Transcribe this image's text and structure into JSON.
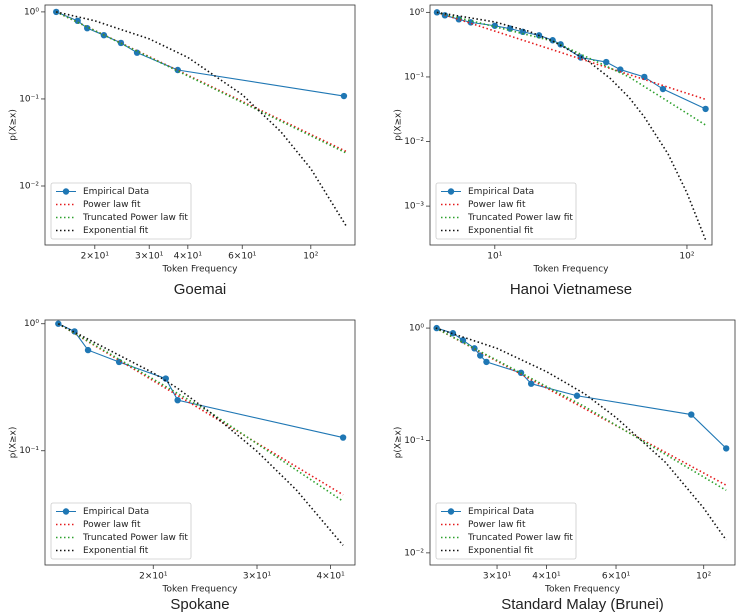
{
  "chart_data": [
    {
      "type": "line",
      "title": "Goemai",
      "xlabel": "Token Frequency",
      "ylabel": "p(X≥x)",
      "xscale": "log",
      "yscale": "log",
      "legend": "lower left",
      "xlim": [
        13.8,
        139
      ],
      "ylim": [
        0.0021,
        1.2
      ],
      "xticks": [
        {
          "value": 20,
          "label": "2×10¹"
        },
        {
          "value": 30,
          "label": "3×10¹"
        },
        {
          "value": 40,
          "label": "4×10¹"
        },
        {
          "value": 60,
          "label": "6×10¹"
        },
        {
          "value": 100,
          "label": "10²"
        }
      ],
      "yticks": [
        {
          "value": 1,
          "label": "10⁰"
        },
        {
          "value": 0.1,
          "label": "10⁻¹"
        },
        {
          "value": 0.01,
          "label": "10⁻²"
        }
      ],
      "series": [
        {
          "name": "Empirical Data",
          "color": "#1f77b4",
          "linestyle": "solid",
          "marker": "o",
          "x": [
            15,
            17.6,
            18.9,
            21.4,
            24.3,
            27.4,
            37.1,
            128
          ],
          "values": [
            1.0,
            0.79,
            0.65,
            0.54,
            0.44,
            0.34,
            0.215,
            0.108
          ]
        },
        {
          "name": "Power law fit",
          "color": "#e41a1c",
          "linestyle": "dotted",
          "marker": "none",
          "x": [
            15,
            130
          ],
          "values": [
            1.0,
            0.025
          ]
        },
        {
          "name": "Truncated Power law fit",
          "color": "#2ca02c",
          "linestyle": "dotted",
          "marker": "none",
          "x": [
            15,
            130
          ],
          "values": [
            1.0,
            0.024
          ]
        },
        {
          "name": "Exponential fit",
          "color": "#111111",
          "linestyle": "dotted",
          "marker": "none",
          "x": [
            15,
            20,
            30,
            40,
            60,
            80,
            100,
            130
          ],
          "values": [
            1.0,
            0.79,
            0.49,
            0.3,
            0.112,
            0.042,
            0.0158,
            0.0035
          ]
        }
      ]
    },
    {
      "type": "line",
      "title": "Hanoi Vietnamese",
      "xlabel": "Token Frequency",
      "ylabel": "p(X≥x)",
      "xscale": "log",
      "yscale": "log",
      "legend": "lower left",
      "xlim": [
        4.6,
        135
      ],
      "ylim": [
        0.00025,
        1.3
      ],
      "xticks": [
        {
          "value": 10,
          "label": "10¹"
        },
        {
          "value": 100,
          "label": "10²"
        }
      ],
      "yticks": [
        {
          "value": 1,
          "label": "10⁰"
        },
        {
          "value": 0.1,
          "label": "10⁻¹"
        },
        {
          "value": 0.01,
          "label": "10⁻²"
        },
        {
          "value": 0.001,
          "label": "10⁻³"
        }
      ],
      "series": [
        {
          "name": "Empirical Data",
          "color": "#1f77b4",
          "linestyle": "solid",
          "marker": "o",
          "x": [
            5,
            5.5,
            6.5,
            7.5,
            10,
            12,
            14,
            17,
            20,
            22,
            28,
            38,
            45,
            60,
            75,
            125
          ],
          "values": [
            1.0,
            0.9,
            0.78,
            0.7,
            0.62,
            0.56,
            0.5,
            0.44,
            0.37,
            0.32,
            0.2,
            0.17,
            0.13,
            0.1,
            0.065,
            0.032
          ]
        },
        {
          "name": "Power law fit",
          "color": "#e41a1c",
          "linestyle": "dotted",
          "marker": "none",
          "x": [
            5,
            125
          ],
          "values": [
            1.0,
            0.045
          ]
        },
        {
          "name": "Truncated Power law fit",
          "color": "#2ca02c",
          "linestyle": "dotted",
          "marker": "none",
          "x": [
            5,
            20,
            50,
            125
          ],
          "values": [
            1.0,
            0.36,
            0.1,
            0.018
          ]
        },
        {
          "name": "Exponential fit",
          "color": "#111111",
          "linestyle": "dotted",
          "marker": "none",
          "x": [
            5,
            10,
            15,
            20,
            30,
            40,
            50,
            60,
            80,
            100,
            125
          ],
          "values": [
            1.0,
            0.71,
            0.51,
            0.36,
            0.185,
            0.094,
            0.048,
            0.024,
            0.0063,
            0.0016,
            0.0003
          ]
        }
      ]
    },
    {
      "type": "line",
      "title": "Spokane",
      "xlabel": "Token Frequency",
      "ylabel": "p(X≥x)",
      "xscale": "log",
      "yscale": "log",
      "legend": "lower left",
      "xlim": [
        13.1,
        44
      ],
      "ylim": [
        0.0126,
        1.07
      ],
      "xticks": [
        {
          "value": 20,
          "label": "2×10¹"
        },
        {
          "value": 30,
          "label": "3×10¹"
        },
        {
          "value": 40,
          "label": "4×10¹"
        }
      ],
      "yticks": [
        {
          "value": 1,
          "label": "10⁰"
        },
        {
          "value": 0.1,
          "label": "10⁻¹"
        }
      ],
      "series": [
        {
          "name": "Empirical Data",
          "color": "#1f77b4",
          "linestyle": "solid",
          "marker": "o",
          "x": [
            13.8,
            14.7,
            15.5,
            17.5,
            21,
            22,
            42
          ],
          "values": [
            1.0,
            0.87,
            0.62,
            0.5,
            0.37,
            0.25,
            0.127
          ]
        },
        {
          "name": "Power law fit",
          "color": "#e41a1c",
          "linestyle": "dotted",
          "marker": "none",
          "x": [
            13.8,
            42
          ],
          "values": [
            1.0,
            0.045
          ]
        },
        {
          "name": "Truncated Power law fit",
          "color": "#2ca02c",
          "linestyle": "dotted",
          "marker": "none",
          "x": [
            13.8,
            25,
            42
          ],
          "values": [
            1.0,
            0.2,
            0.04
          ]
        },
        {
          "name": "Exponential fit",
          "color": "#111111",
          "linestyle": "dotted",
          "marker": "none",
          "x": [
            13.8,
            20,
            22,
            25,
            30,
            35,
            42
          ],
          "values": [
            1.0,
            0.41,
            0.31,
            0.2,
            0.099,
            0.049,
            0.018
          ]
        }
      ]
    },
    {
      "type": "line",
      "title": "Standard Malay (Brunei)",
      "xlabel": "Token Frequency",
      "ylabel": "p(X≥x)",
      "xscale": "log",
      "yscale": "log",
      "legend": "lower left",
      "xlim": [
        20.3,
        120
      ],
      "ylim": [
        0.0078,
        1.18
      ],
      "xticks": [
        {
          "value": 30,
          "label": "3×10¹"
        },
        {
          "value": 40,
          "label": "4×10¹"
        },
        {
          "value": 60,
          "label": "6×10¹"
        },
        {
          "value": 100,
          "label": "10²"
        }
      ],
      "yticks": [
        {
          "value": 1,
          "label": "10⁰"
        },
        {
          "value": 0.1,
          "label": "10⁻¹"
        },
        {
          "value": 0.01,
          "label": "10⁻²"
        }
      ],
      "series": [
        {
          "name": "Empirical Data",
          "color": "#1f77b4",
          "linestyle": "solid",
          "marker": "o",
          "x": [
            21.1,
            23.2,
            24.6,
            26.3,
            27.2,
            28.2,
            34.5,
            36.6,
            47.8,
            93,
            114
          ],
          "values": [
            1.0,
            0.9,
            0.78,
            0.66,
            0.57,
            0.5,
            0.4,
            0.32,
            0.25,
            0.17,
            0.085
          ]
        },
        {
          "name": "Power law fit",
          "color": "#e41a1c",
          "linestyle": "dotted",
          "marker": "none",
          "x": [
            21,
            114
          ],
          "values": [
            1.0,
            0.04
          ]
        },
        {
          "name": "Truncated Power law fit",
          "color": "#2ca02c",
          "linestyle": "dotted",
          "marker": "none",
          "x": [
            21,
            50,
            114
          ],
          "values": [
            1.0,
            0.2,
            0.036
          ]
        },
        {
          "name": "Exponential fit",
          "color": "#111111",
          "linestyle": "dotted",
          "marker": "none",
          "x": [
            21,
            30,
            40,
            50,
            60,
            80,
            100,
            114
          ],
          "values": [
            1.0,
            0.66,
            0.41,
            0.26,
            0.16,
            0.064,
            0.025,
            0.013
          ]
        }
      ]
    }
  ]
}
